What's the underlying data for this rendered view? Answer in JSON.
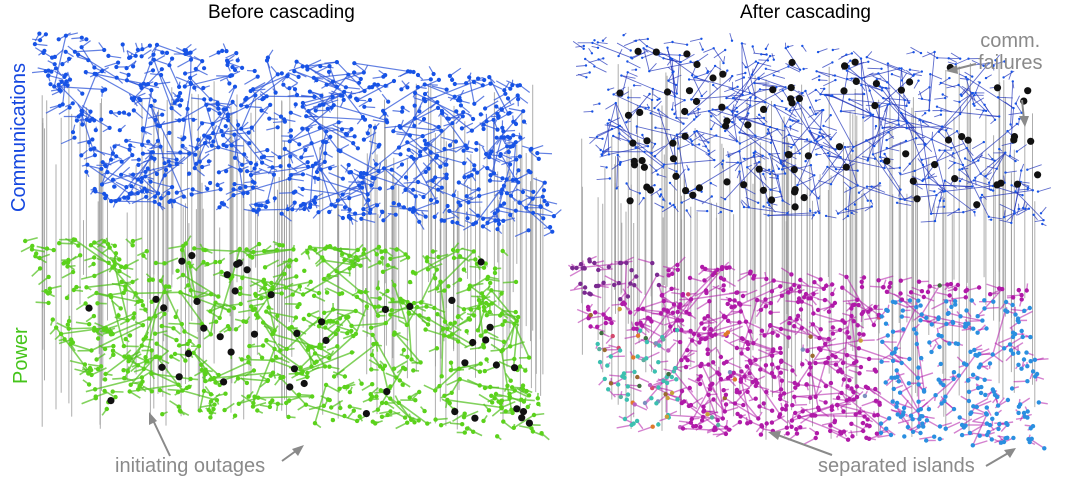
{
  "titles": {
    "before": "Before cascading",
    "after": "After cascading"
  },
  "layers": {
    "communications": "Communications",
    "power": "Power",
    "communications_color": "#1547e0",
    "power_color": "#45c41a"
  },
  "annotations": {
    "initiating_outages": "initiating outages",
    "comm_failures_line1": "comm.",
    "comm_failures_line2": "failures",
    "separated_islands": "separated islands"
  },
  "colors": {
    "comm_node": "#1753e6",
    "comm_edge": "#2d55d8",
    "comm_edge_after": "#1b2fb8",
    "power_node": "#5bd21b",
    "power_edge": "#4dbf18",
    "failed_node": "#111111",
    "interlink": "#9a9a9a",
    "island_main": "#b01aa8",
    "island_blue": "#2a8fe0",
    "island_teal": "#3cc0b0",
    "island_purple": "#7a2a90",
    "annotation": "#8a8a8a"
  }
}
